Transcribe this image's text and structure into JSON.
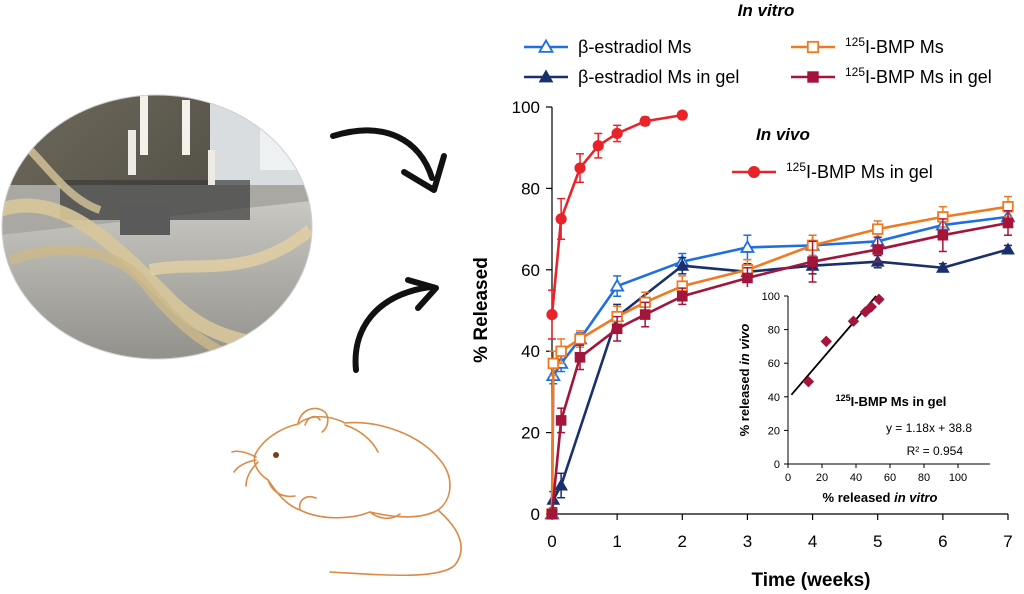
{
  "chart_data": [
    {
      "type": "line",
      "title": "In vitro",
      "inset_title": "In vivo",
      "xlabel": "Time (weeks)",
      "ylabel": "% Released",
      "xlim": [
        0,
        7
      ],
      "ylim": [
        0,
        100
      ],
      "x_ticks": [
        "0",
        "1",
        "2",
        "3",
        "4",
        "5",
        "6",
        "7"
      ],
      "y_ticks": [
        "0",
        "20",
        "40",
        "60",
        "80",
        "100"
      ],
      "legend": "top",
      "series": [
        {
          "name_prefix": "β-estradiol Ms",
          "name_sup": "",
          "name_rest": "",
          "color": "#1f6fe0",
          "marker": "triangle-open",
          "x": [
            0,
            0.02,
            0.14,
            0.43,
            1,
            2,
            3,
            4,
            5,
            6,
            7
          ],
          "y": [
            0,
            34,
            37,
            43,
            56,
            62,
            65.5,
            66,
            67,
            71,
            73
          ],
          "err": [
            0,
            2,
            2,
            1.5,
            2.5,
            2,
            3,
            2.5,
            2,
            2.5,
            2
          ]
        },
        {
          "name_prefix": "β-estradiol Ms in gel",
          "name_sup": "",
          "name_rest": "",
          "color": "#1a2f6e",
          "marker": "triangle-filled",
          "x": [
            0,
            0.02,
            0.14,
            1,
            2,
            3,
            4,
            5,
            6,
            7
          ],
          "y": [
            0,
            3.5,
            7,
            48.5,
            61,
            59.5,
            61,
            62,
            60.5,
            65
          ],
          "err": [
            0,
            2,
            3,
            3,
            2,
            2,
            2,
            1.5,
            1,
            1
          ]
        },
        {
          "name_prefix": "",
          "name_sup": "125",
          "name_rest": "I-BMP Ms",
          "color": "#f07a22",
          "marker": "square-open",
          "x": [
            0,
            0.02,
            0.14,
            0.43,
            1,
            1.43,
            2,
            3,
            4,
            5,
            6,
            7
          ],
          "y": [
            0,
            37,
            40,
            43,
            48.5,
            52,
            56,
            60,
            66,
            70,
            73,
            75.5
          ],
          "err": [
            0,
            3,
            3,
            2,
            2.5,
            2.5,
            2.5,
            2.5,
            2.5,
            2,
            2.5,
            2.5
          ]
        },
        {
          "name_prefix": "",
          "name_sup": "125",
          "name_rest": "I-BMP Ms in gel",
          "color": "#a3153a",
          "marker": "square-filled",
          "x": [
            0,
            0.14,
            0.43,
            1,
            1.43,
            2,
            3,
            4,
            5,
            6,
            7
          ],
          "y": [
            0,
            23,
            38.5,
            45.5,
            49,
            53.5,
            58,
            62,
            65,
            68.5,
            71.5
          ],
          "err": [
            0,
            3,
            3,
            3,
            3,
            2,
            2.5,
            5,
            3,
            4,
            3
          ]
        },
        {
          "name_prefix": "",
          "name_sup": "125",
          "name_rest": "I-BMP Ms in gel",
          "color": "#e8232a",
          "marker": "circle-filled",
          "x": [
            0,
            0.14,
            0.43,
            0.71,
            1,
            1.43,
            2
          ],
          "y": [
            49,
            72.5,
            85,
            90.5,
            93.5,
            96.5,
            98
          ],
          "err": [
            6,
            5,
            3.5,
            3,
            2,
            1,
            0.5
          ]
        }
      ]
    },
    {
      "type": "scatter",
      "xlabel_prefix": "% released ",
      "xlabel_italic": "in vitro",
      "ylabel_prefix": "% released ",
      "ylabel_italic": "in vivo",
      "xlim": [
        0,
        120
      ],
      "ylim": [
        0,
        100
      ],
      "x_ticks": [
        "0",
        "20",
        "40",
        "60",
        "80",
        "100"
      ],
      "y_ticks": [
        "0",
        "20",
        "40",
        "60",
        "80",
        "100"
      ],
      "label_sup": "125",
      "label_rest": "I-BMP Ms in gel",
      "equation": "y = 1.18x + 38.8",
      "r2": "R² = 0.954",
      "points_x": [
        12,
        22.5,
        38.5,
        45.5,
        49,
        53.5
      ],
      "points_y": [
        49,
        73,
        85,
        90.5,
        93.5,
        98
      ],
      "point_color": "#a3153a",
      "fit": {
        "slope": 1.18,
        "intercept": 38.8
      }
    }
  ],
  "illustrations": {
    "photo": "lab-apparatus-photo",
    "animal": "mouse-drawing",
    "arrows": [
      "curved-arrow-right",
      "curved-arrow-up"
    ]
  }
}
